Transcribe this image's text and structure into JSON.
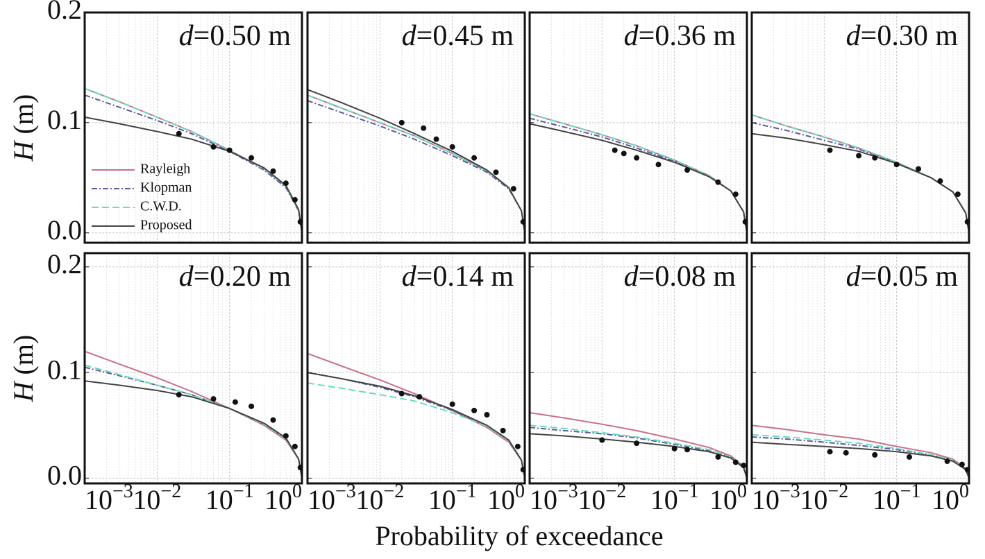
{
  "figure": {
    "xlabel": "Probability of exceedance"
  },
  "chart_data": [
    {
      "type": "line",
      "title": "d=0.50 m",
      "ylabel": "H (m)",
      "xscale": "log",
      "xlim": [
        0.001,
        1
      ],
      "xticks": [
        0.001,
        0.01,
        0.1,
        1
      ],
      "ylim": [
        -0.009,
        0.2
      ],
      "yticks": [
        {
          "value": 0,
          "label": "0.0"
        },
        {
          "value": 0.1,
          "label": "0.1"
        },
        {
          "value": 0.2,
          "label": "0.2"
        }
      ],
      "grid": true,
      "legend": "lower left",
      "x": [
        0.001,
        0.003,
        0.01,
        0.03,
        0.1,
        0.3,
        0.6,
        0.9,
        1
      ],
      "series": [
        {
          "name": "Rayleigh",
          "color": "#c9708a",
          "style": "solid",
          "values": [
            0.131,
            0.119,
            0.105,
            0.092,
            0.075,
            0.058,
            0.042,
            0.02,
            0
          ]
        },
        {
          "name": "Klopman",
          "color": "#5a5aa8",
          "style": "dashdot",
          "values": [
            0.125,
            0.114,
            0.102,
            0.09,
            0.074,
            0.057,
            0.041,
            0.02,
            0
          ]
        },
        {
          "name": "C.W.D.",
          "color": "#66ddbb",
          "style": "dashed",
          "values": [
            0.131,
            0.119,
            0.105,
            0.092,
            0.075,
            0.058,
            0.042,
            0.02,
            0
          ]
        },
        {
          "name": "Proposed",
          "color": "#444444",
          "style": "solid",
          "values": [
            0.105,
            0.099,
            0.092,
            0.085,
            0.074,
            0.059,
            0.043,
            0.021,
            0
          ]
        }
      ],
      "measured": {
        "x": [
          0.02,
          0.06,
          0.1,
          0.2,
          0.4,
          0.6,
          0.8,
          0.95
        ],
        "values": [
          0.09,
          0.078,
          0.075,
          0.068,
          0.056,
          0.045,
          0.03,
          0.01
        ]
      }
    },
    {
      "type": "line",
      "title": "d=0.45 m",
      "xscale": "log",
      "xlim": [
        0.001,
        1
      ],
      "xticks": [
        0.001,
        0.01,
        0.1,
        1
      ],
      "ylim": [
        -0.009,
        0.2
      ],
      "yticks": [
        0,
        0.1,
        0.2
      ],
      "grid": true,
      "x": [
        0.001,
        0.003,
        0.01,
        0.03,
        0.1,
        0.3,
        0.6,
        0.9,
        1
      ],
      "series": [
        {
          "name": "Rayleigh",
          "color": "#c9708a",
          "style": "solid",
          "values": [
            0.125,
            0.113,
            0.1,
            0.088,
            0.072,
            0.056,
            0.041,
            0.02,
            0
          ]
        },
        {
          "name": "Klopman",
          "color": "#5a5aa8",
          "style": "dashdot",
          "values": [
            0.12,
            0.109,
            0.097,
            0.085,
            0.07,
            0.055,
            0.04,
            0.02,
            0
          ]
        },
        {
          "name": "C.W.D.",
          "color": "#66ddbb",
          "style": "dashed",
          "values": [
            0.125,
            0.113,
            0.1,
            0.088,
            0.072,
            0.056,
            0.041,
            0.02,
            0
          ]
        },
        {
          "name": "Proposed",
          "color": "#444444",
          "style": "solid",
          "values": [
            0.13,
            0.118,
            0.104,
            0.09,
            0.074,
            0.057,
            0.041,
            0.02,
            0
          ]
        }
      ],
      "measured": {
        "x": [
          0.02,
          0.04,
          0.06,
          0.1,
          0.2,
          0.4,
          0.7,
          0.95
        ],
        "values": [
          0.1,
          0.095,
          0.085,
          0.078,
          0.068,
          0.055,
          0.04,
          0.01
        ]
      }
    },
    {
      "type": "line",
      "title": "d=0.36 m",
      "xscale": "log",
      "xlim": [
        0.001,
        1
      ],
      "xticks": [
        0.001,
        0.01,
        0.1,
        1
      ],
      "ylim": [
        -0.009,
        0.2
      ],
      "yticks": [
        0,
        0.1,
        0.2
      ],
      "grid": true,
      "x": [
        0.001,
        0.003,
        0.01,
        0.03,
        0.1,
        0.3,
        0.6,
        0.9,
        1
      ],
      "series": [
        {
          "name": "Rayleigh",
          "color": "#c9708a",
          "style": "solid",
          "values": [
            0.108,
            0.099,
            0.089,
            0.079,
            0.066,
            0.052,
            0.038,
            0.019,
            0
          ]
        },
        {
          "name": "Klopman",
          "color": "#5a5aa8",
          "style": "dashdot",
          "values": [
            0.104,
            0.096,
            0.087,
            0.077,
            0.065,
            0.051,
            0.038,
            0.019,
            0
          ]
        },
        {
          "name": "C.W.D.",
          "color": "#66ddbb",
          "style": "dashed",
          "values": [
            0.108,
            0.099,
            0.089,
            0.079,
            0.066,
            0.052,
            0.038,
            0.019,
            0
          ]
        },
        {
          "name": "Proposed",
          "color": "#444444",
          "style": "solid",
          "values": [
            0.099,
            0.092,
            0.084,
            0.075,
            0.064,
            0.051,
            0.038,
            0.019,
            0
          ]
        }
      ],
      "measured": {
        "x": [
          0.015,
          0.02,
          0.03,
          0.06,
          0.15,
          0.4,
          0.7,
          0.95
        ],
        "values": [
          0.075,
          0.072,
          0.068,
          0.062,
          0.057,
          0.046,
          0.035,
          0.01
        ]
      }
    },
    {
      "type": "line",
      "title": "d=0.30 m",
      "xscale": "log",
      "xlim": [
        0.001,
        1
      ],
      "xticks": [
        0.001,
        0.01,
        0.1,
        1
      ],
      "ylim": [
        -0.009,
        0.2
      ],
      "yticks": [
        0,
        0.1,
        0.2
      ],
      "grid": true,
      "x": [
        0.001,
        0.003,
        0.01,
        0.03,
        0.1,
        0.3,
        0.6,
        0.9,
        1
      ],
      "series": [
        {
          "name": "Rayleigh",
          "color": "#c9708a",
          "style": "solid",
          "values": [
            0.107,
            0.097,
            0.087,
            0.077,
            0.064,
            0.05,
            0.037,
            0.018,
            0
          ]
        },
        {
          "name": "Klopman",
          "color": "#5a5aa8",
          "style": "dashdot",
          "values": [
            0.1,
            0.093,
            0.084,
            0.076,
            0.063,
            0.05,
            0.037,
            0.018,
            0
          ]
        },
        {
          "name": "C.W.D.",
          "color": "#66ddbb",
          "style": "dashed",
          "values": [
            0.107,
            0.097,
            0.087,
            0.077,
            0.064,
            0.05,
            0.037,
            0.018,
            0
          ]
        },
        {
          "name": "Proposed",
          "color": "#444444",
          "style": "solid",
          "values": [
            0.09,
            0.086,
            0.08,
            0.074,
            0.063,
            0.05,
            0.037,
            0.018,
            0
          ]
        }
      ],
      "measured": {
        "x": [
          0.012,
          0.03,
          0.05,
          0.1,
          0.2,
          0.4,
          0.7,
          0.95
        ],
        "values": [
          0.075,
          0.07,
          0.068,
          0.062,
          0.058,
          0.047,
          0.035,
          0.01
        ]
      }
    },
    {
      "type": "line",
      "title": "d=0.20 m",
      "ylabel": "H (m)",
      "xscale": "log",
      "xlim": [
        0.001,
        1
      ],
      "xticks": [
        {
          "value": 0.001,
          "label": "10−3"
        },
        {
          "value": 0.01,
          "label": "10−2"
        },
        {
          "value": 0.1,
          "label": "10−1"
        },
        {
          "value": 1,
          "label": "100"
        }
      ],
      "ylim": [
        -0.005,
        0.213
      ],
      "yticks": [
        {
          "value": 0,
          "label": "0.0"
        },
        {
          "value": 0.1,
          "label": "0.1"
        },
        {
          "value": 0.2,
          "label": "0.2"
        }
      ],
      "grid": true,
      "x": [
        0.001,
        0.003,
        0.01,
        0.03,
        0.1,
        0.3,
        0.6,
        0.9,
        1
      ],
      "series": [
        {
          "name": "Rayleigh",
          "color": "#c9708a",
          "style": "solid",
          "values": [
            0.12,
            0.108,
            0.095,
            0.082,
            0.066,
            0.05,
            0.036,
            0.018,
            0
          ]
        },
        {
          "name": "Klopman",
          "color": "#5a5aa8",
          "style": "dashdot",
          "values": [
            0.105,
            0.097,
            0.088,
            0.079,
            0.066,
            0.051,
            0.037,
            0.018,
            0
          ]
        },
        {
          "name": "C.W.D.",
          "color": "#66ddbb",
          "style": "dashed",
          "values": [
            0.107,
            0.098,
            0.088,
            0.079,
            0.066,
            0.051,
            0.037,
            0.018,
            0
          ]
        },
        {
          "name": "Proposed",
          "color": "#444444",
          "style": "solid",
          "values": [
            0.092,
            0.088,
            0.083,
            0.077,
            0.066,
            0.052,
            0.038,
            0.018,
            0
          ]
        }
      ],
      "measured": {
        "x": [
          0.02,
          0.06,
          0.12,
          0.2,
          0.4,
          0.6,
          0.8,
          0.95
        ],
        "values": [
          0.079,
          0.075,
          0.072,
          0.068,
          0.055,
          0.04,
          0.03,
          0.01
        ]
      }
    },
    {
      "type": "line",
      "title": "d=0.14 m",
      "xscale": "log",
      "xlim": [
        0.001,
        1
      ],
      "xticks": [
        {
          "value": 0.001,
          "label": "10−3"
        },
        {
          "value": 0.01,
          "label": "10−2"
        },
        {
          "value": 0.1,
          "label": "10−1"
        },
        {
          "value": 1,
          "label": "100"
        }
      ],
      "ylim": [
        -0.005,
        0.213
      ],
      "yticks": [
        0,
        0.1,
        0.2
      ],
      "grid": true,
      "x": [
        0.001,
        0.003,
        0.01,
        0.03,
        0.1,
        0.3,
        0.6,
        0.9,
        1
      ],
      "series": [
        {
          "name": "Rayleigh",
          "color": "#c9708a",
          "style": "solid",
          "values": [
            0.118,
            0.106,
            0.093,
            0.08,
            0.064,
            0.048,
            0.034,
            0.017,
            0
          ]
        },
        {
          "name": "Klopman",
          "color": "#5a5aa8",
          "style": "dashdot",
          "values": [
            0.1,
            0.094,
            0.086,
            0.077,
            0.064,
            0.05,
            0.036,
            0.017,
            0
          ]
        },
        {
          "name": "C.W.D.",
          "color": "#66ddbb",
          "style": "dashed",
          "values": [
            0.09,
            0.085,
            0.079,
            0.073,
            0.062,
            0.049,
            0.035,
            0.017,
            0
          ]
        },
        {
          "name": "Proposed",
          "color": "#444444",
          "style": "solid",
          "values": [
            0.1,
            0.094,
            0.087,
            0.078,
            0.065,
            0.05,
            0.036,
            0.017,
            0
          ]
        }
      ],
      "measured": {
        "x": [
          0.02,
          0.035,
          0.1,
          0.2,
          0.3,
          0.5,
          0.8,
          0.95
        ],
        "values": [
          0.08,
          0.077,
          0.07,
          0.064,
          0.06,
          0.045,
          0.03,
          0.008
        ]
      }
    },
    {
      "type": "line",
      "title": "d=0.08 m",
      "xscale": "log",
      "xlim": [
        0.001,
        1
      ],
      "xticks": [
        {
          "value": 0.001,
          "label": "10−3"
        },
        {
          "value": 0.01,
          "label": "10−2"
        },
        {
          "value": 0.1,
          "label": "10−1"
        },
        {
          "value": 1,
          "label": "100"
        }
      ],
      "ylim": [
        -0.005,
        0.213
      ],
      "yticks": [
        0,
        0.1,
        0.2
      ],
      "grid": true,
      "x": [
        0.001,
        0.003,
        0.01,
        0.03,
        0.1,
        0.3,
        0.6,
        0.9,
        1
      ],
      "series": [
        {
          "name": "Rayleigh",
          "color": "#c9708a",
          "style": "solid",
          "values": [
            0.062,
            0.057,
            0.051,
            0.045,
            0.037,
            0.029,
            0.021,
            0.011,
            0
          ]
        },
        {
          "name": "Klopman",
          "color": "#5a5aa8",
          "style": "dashdot",
          "values": [
            0.048,
            0.045,
            0.042,
            0.038,
            0.032,
            0.026,
            0.02,
            0.011,
            0
          ]
        },
        {
          "name": "C.W.D.",
          "color": "#66ddbb",
          "style": "dashed",
          "values": [
            0.05,
            0.047,
            0.043,
            0.039,
            0.033,
            0.027,
            0.02,
            0.011,
            0
          ]
        },
        {
          "name": "Proposed",
          "color": "#444444",
          "style": "solid",
          "values": [
            0.042,
            0.04,
            0.037,
            0.034,
            0.03,
            0.025,
            0.019,
            0.01,
            0
          ]
        }
      ],
      "measured": {
        "x": [
          0.01,
          0.03,
          0.1,
          0.15,
          0.4,
          0.7,
          0.9
        ],
        "values": [
          0.036,
          0.033,
          0.028,
          0.027,
          0.02,
          0.015,
          0.012
        ]
      }
    },
    {
      "type": "line",
      "title": "d=0.05 m",
      "xscale": "log",
      "xlim": [
        0.001,
        1
      ],
      "xticks": [
        {
          "value": 0.001,
          "label": "10−3"
        },
        {
          "value": 0.01,
          "label": "10−2"
        },
        {
          "value": 0.1,
          "label": "10−1"
        },
        {
          "value": 1,
          "label": "100"
        }
      ],
      "ylim": [
        -0.005,
        0.213
      ],
      "yticks": [
        0,
        0.1,
        0.2
      ],
      "grid": true,
      "x": [
        0.001,
        0.003,
        0.01,
        0.03,
        0.1,
        0.3,
        0.6,
        0.9,
        1
      ],
      "series": [
        {
          "name": "Rayleigh",
          "color": "#c9708a",
          "style": "solid",
          "values": [
            0.05,
            0.046,
            0.041,
            0.037,
            0.03,
            0.024,
            0.018,
            0.009,
            0
          ]
        },
        {
          "name": "Klopman",
          "color": "#5a5aa8",
          "style": "dashdot",
          "values": [
            0.039,
            0.037,
            0.034,
            0.031,
            0.027,
            0.022,
            0.017,
            0.009,
            0
          ]
        },
        {
          "name": "C.W.D.",
          "color": "#66ddbb",
          "style": "dashed",
          "values": [
            0.041,
            0.039,
            0.036,
            0.033,
            0.028,
            0.022,
            0.017,
            0.009,
            0
          ]
        },
        {
          "name": "Proposed",
          "color": "#444444",
          "style": "solid",
          "values": [
            0.034,
            0.032,
            0.03,
            0.028,
            0.025,
            0.021,
            0.016,
            0.008,
            0
          ]
        }
      ],
      "measured": {
        "x": [
          0.012,
          0.02,
          0.05,
          0.15,
          0.5,
          0.8,
          0.95
        ],
        "values": [
          0.025,
          0.024,
          0.022,
          0.02,
          0.016,
          0.013,
          0.008
        ]
      }
    }
  ]
}
